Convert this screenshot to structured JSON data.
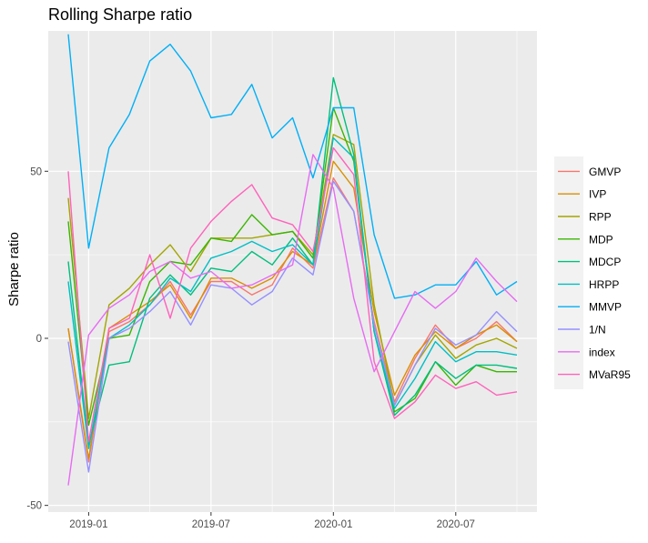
{
  "chart_data": {
    "type": "line",
    "title": "Rolling Sharpe ratio",
    "xlabel": "",
    "ylabel": "Sharpe ratio",
    "x": [
      "2018-12",
      "2019-01",
      "2019-02",
      "2019-03",
      "2019-04",
      "2019-05",
      "2019-06",
      "2019-07",
      "2019-08",
      "2019-09",
      "2019-10",
      "2019-11",
      "2019-12",
      "2020-01",
      "2020-02",
      "2020-03",
      "2020-04",
      "2020-05",
      "2020-06",
      "2020-07",
      "2020-08",
      "2020-09",
      "2020-10"
    ],
    "x_ticks": [
      {
        "value": "2019-01",
        "label": "2019-01"
      },
      {
        "value": "2019-07",
        "label": "2019-07"
      },
      {
        "value": "2020-01",
        "label": "2020-01"
      },
      {
        "value": "2020-07",
        "label": "2020-07"
      }
    ],
    "y_ticks": [
      -50,
      0,
      50
    ],
    "ylim": [
      -52,
      92
    ],
    "grid": true,
    "legend_position": "right",
    "series": [
      {
        "name": "GMVP",
        "color": "#F8766D",
        "values": [
          3,
          -37,
          2,
          5,
          10,
          17,
          7,
          17,
          17,
          13,
          16,
          27,
          21,
          48,
          38,
          5,
          -19,
          -6,
          4,
          -3,
          0,
          5,
          -1
        ]
      },
      {
        "name": "IVP",
        "color": "#D89000",
        "values": [
          3,
          -36,
          3,
          7,
          11,
          16,
          6,
          18,
          18,
          15,
          18,
          26,
          22,
          53,
          45,
          8,
          -17,
          -5,
          2,
          -3,
          1,
          4,
          -1
        ]
      },
      {
        "name": "RPP",
        "color": "#A3A500",
        "values": [
          42,
          -24,
          10,
          15,
          22,
          28,
          20,
          30,
          30,
          30,
          31,
          32,
          25,
          61,
          58,
          10,
          -20,
          -8,
          1,
          -6,
          -2,
          0,
          -3
        ]
      },
      {
        "name": "MDP",
        "color": "#39B600",
        "values": [
          35,
          -26,
          0,
          1,
          17,
          23,
          22,
          30,
          29,
          37,
          31,
          32,
          24,
          69,
          53,
          2,
          -22,
          -18,
          -7,
          -14,
          -8,
          -10,
          -10
        ]
      },
      {
        "name": "MDCP",
        "color": "#00BF7D",
        "values": [
          23,
          -32,
          -8,
          -7,
          12,
          19,
          13,
          21,
          20,
          26,
          22,
          30,
          22,
          78,
          55,
          2,
          -23,
          -17,
          -7,
          -12,
          -8,
          -8,
          -9
        ]
      },
      {
        "name": "HRPP",
        "color": "#00BFC4",
        "values": [
          17,
          -33,
          0,
          4,
          10,
          18,
          14,
          24,
          26,
          29,
          26,
          28,
          22,
          60,
          54,
          2,
          -21,
          -12,
          -1,
          -7,
          -4,
          -4,
          -5
        ]
      },
      {
        "name": "MMVP",
        "color": "#00B0F6",
        "values": [
          91,
          27,
          57,
          67,
          83,
          88,
          80,
          66,
          67,
          76,
          60,
          66,
          48,
          69,
          69,
          31,
          12,
          13,
          16,
          16,
          23,
          13,
          17
        ]
      },
      {
        "name": "1/N",
        "color": "#9590FF",
        "values": [
          -1,
          -40,
          0,
          3,
          8,
          14,
          4,
          16,
          15,
          10,
          14,
          24,
          19,
          47,
          38,
          4,
          -20,
          -8,
          3,
          -2,
          1,
          8,
          2
        ]
      },
      {
        "name": "index",
        "color": "#E76BF3",
        "values": [
          -44,
          1,
          9,
          13,
          20,
          23,
          18,
          20,
          15,
          16,
          19,
          22,
          55,
          45,
          12,
          -10,
          2,
          14,
          9,
          14,
          24,
          17,
          11
        ]
      },
      {
        "name": "MVaR95",
        "color": "#FF62BC",
        "values": [
          50,
          -31,
          3,
          6,
          25,
          6,
          27,
          35,
          41,
          46,
          36,
          34,
          26,
          57,
          49,
          -7,
          -24,
          -19,
          -11,
          -15,
          -13,
          -17,
          -16
        ]
      }
    ]
  }
}
